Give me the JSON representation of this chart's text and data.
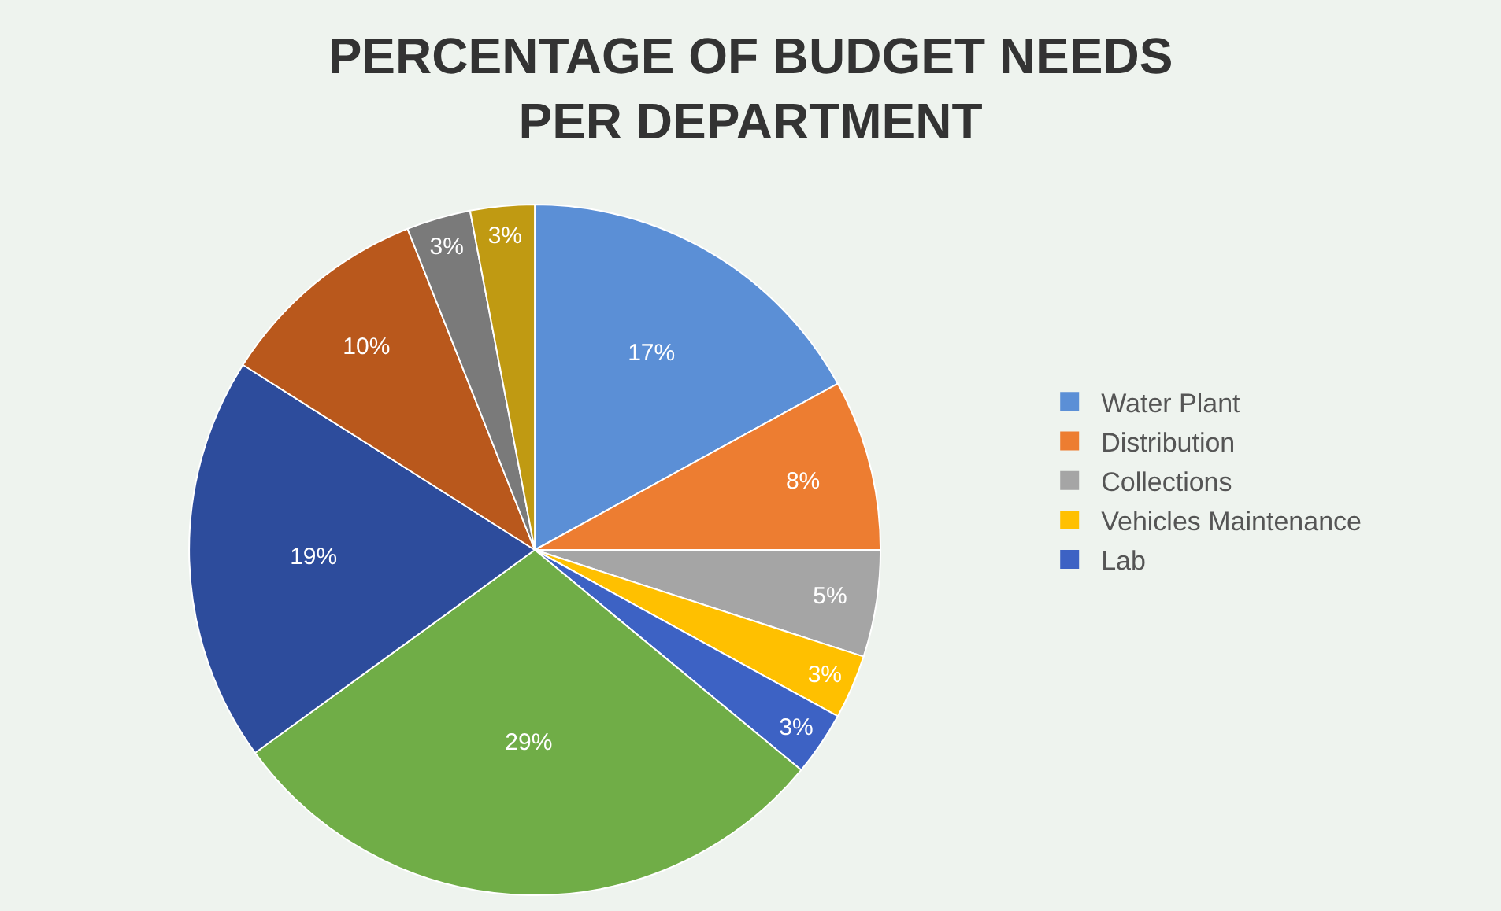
{
  "chart_data": {
    "type": "pie",
    "title": "PERCENTAGE OF BUDGET NEEDS\nPER DEPARTMENT",
    "categories": [
      "Water Plant",
      "Distribution",
      "Collections",
      "Vehicles Maintenance",
      "Lab",
      null,
      null,
      null,
      null,
      null
    ],
    "values": [
      17,
      8,
      5,
      3,
      3,
      29,
      19,
      10,
      3,
      3
    ],
    "value_labels": [
      "17%",
      "8%",
      "5%",
      "3%",
      "3%",
      "29%",
      "19%",
      "10%",
      "3%",
      "3%"
    ],
    "colors": [
      "#5b8fd6",
      "#ed7d31",
      "#a5a5a5",
      "#ffc000",
      "#3d62c4",
      "#70ad47",
      "#2d4c9c",
      "#b9581c",
      "#7a7a7a",
      "#c09a12"
    ],
    "legend": "right"
  }
}
